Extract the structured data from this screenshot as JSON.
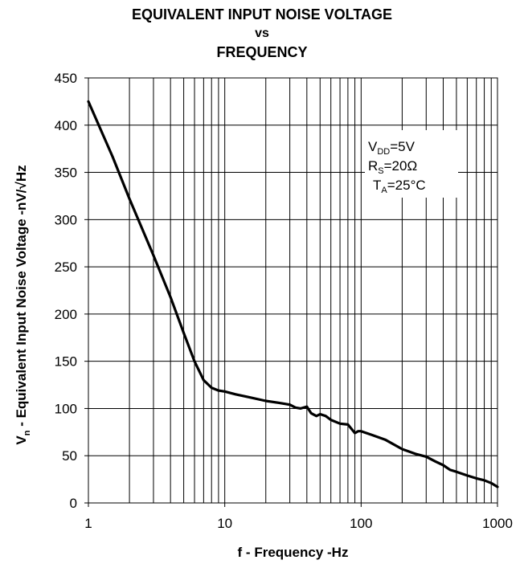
{
  "chart_data": {
    "type": "line",
    "title": [
      "EQUIVALENT INPUT NOISE VOLTAGE",
      "vs",
      "FREQUENCY"
    ],
    "xlabel": "f - Frequency -Hz",
    "ylabel": {
      "prefix": "V",
      "sub": "n",
      "text": " - Equivalent Input Noise Voltage -nV/√Hz"
    },
    "x_scale": "log",
    "xlim": [
      1,
      1000
    ],
    "ylim": [
      0,
      450
    ],
    "x_ticks": [
      {
        "value": 1,
        "label": "1"
      },
      {
        "value": 10,
        "label": "10"
      },
      {
        "value": 100,
        "label": "100"
      },
      {
        "value": 1000,
        "label": "1000"
      }
    ],
    "y_ticks": [
      {
        "value": 0,
        "label": "0"
      },
      {
        "value": 50,
        "label": "50"
      },
      {
        "value": 100,
        "label": "100"
      },
      {
        "value": 150,
        "label": "150"
      },
      {
        "value": 200,
        "label": "200"
      },
      {
        "value": 250,
        "label": "250"
      },
      {
        "value": 300,
        "label": "300"
      },
      {
        "value": 350,
        "label": "350"
      },
      {
        "value": 400,
        "label": "400"
      },
      {
        "value": 450,
        "label": "450"
      }
    ],
    "grid": true,
    "annotation": [
      {
        "main": "V",
        "sub": "DD",
        "rest": "=5V"
      },
      {
        "main": "R",
        "sub": "S",
        "rest": "=20Ω"
      },
      {
        "main": "T",
        "sub": "A",
        "rest": "=25°C"
      }
    ],
    "series": [
      {
        "line_color": "#000000",
        "x": [
          1,
          1.5,
          2,
          3,
          4,
          5,
          6,
          7,
          8,
          9,
          10,
          12,
          15,
          20,
          25,
          30,
          33,
          36,
          40,
          43,
          47,
          50,
          55,
          60,
          70,
          80,
          90,
          95,
          100,
          120,
          150,
          200,
          250,
          300,
          350,
          400,
          450,
          500,
          600,
          700,
          800,
          900,
          1000
        ],
        "y": [
          425,
          367,
          322,
          262,
          218,
          180,
          150,
          130,
          122,
          119,
          118,
          115,
          112,
          108,
          106,
          104,
          101,
          100,
          102,
          95,
          92,
          94,
          92,
          88,
          84,
          83,
          74,
          76,
          76,
          72,
          67,
          57,
          52,
          49,
          44,
          40,
          35,
          33,
          29,
          26,
          24,
          21,
          17
        ]
      }
    ]
  }
}
